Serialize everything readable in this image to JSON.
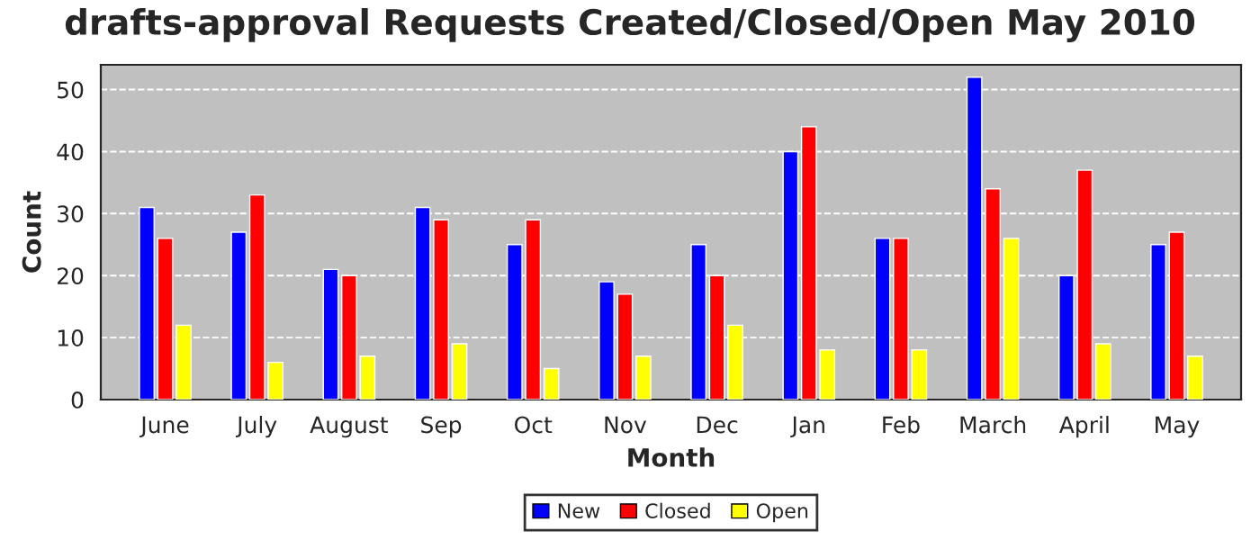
{
  "chart_data": {
    "type": "bar",
    "title": "drafts-approval Requests Created/Closed/Open May 2010",
    "xlabel": "Month",
    "ylabel": "Count",
    "categories": [
      "June",
      "July",
      "August",
      "Sep",
      "Oct",
      "Nov",
      "Dec",
      "Jan",
      "Feb",
      "March",
      "April",
      "May"
    ],
    "series": [
      {
        "name": "New",
        "color": "#0000ff",
        "values": [
          31,
          27,
          21,
          31,
          25,
          19,
          25,
          40,
          26,
          52,
          20,
          25
        ]
      },
      {
        "name": "Closed",
        "color": "#ff0000",
        "values": [
          26,
          33,
          20,
          29,
          29,
          17,
          20,
          44,
          26,
          34,
          37,
          27
        ]
      },
      {
        "name": "Open",
        "color": "#ffff00",
        "values": [
          12,
          6,
          7,
          9,
          5,
          7,
          12,
          8,
          8,
          26,
          9,
          7
        ]
      }
    ],
    "ylim": [
      0,
      54
    ],
    "yticks": [
      0,
      10,
      20,
      30,
      40,
      50
    ],
    "grid": "y",
    "legend": "bottom"
  }
}
